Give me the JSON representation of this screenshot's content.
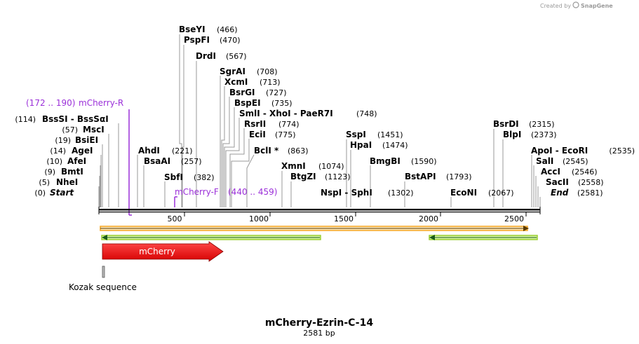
{
  "credit": "Created by",
  "brand": "SnapGene",
  "title": "mCherry-Ezrin-C-14",
  "subtitle": "2581 bp",
  "sites": [
    {
      "name": "BseYI",
      "pos": "(466)"
    },
    {
      "name": "PspFI",
      "pos": "(470)"
    },
    {
      "name": "DrdI",
      "pos": "(567)"
    },
    {
      "name": "SgrAI",
      "pos": "(708)"
    },
    {
      "name": "XcmI",
      "pos": "(713)"
    },
    {
      "name": "BsrGI",
      "pos": "(727)"
    },
    {
      "name": "BspEI",
      "pos": "(735)"
    },
    {
      "name": "SmlI - XhoI - PaeR7I",
      "pos": "(748)"
    },
    {
      "name": "RsrII",
      "pos": "(774)"
    },
    {
      "name": "EciI",
      "pos": "(775)"
    },
    {
      "name": "BclI *",
      "pos": "(863)"
    },
    {
      "name": "BssSI - BssSαI",
      "pos": "(114)"
    },
    {
      "name": "MscI",
      "pos": "(57)"
    },
    {
      "name": "BsiEI",
      "pos": "(19)"
    },
    {
      "name": "AgeI",
      "pos": "(14)"
    },
    {
      "name": "AfeI",
      "pos": "(10)"
    },
    {
      "name": "BmtI",
      "pos": "(9)"
    },
    {
      "name": "NheI",
      "pos": "(5)"
    },
    {
      "name": "Start",
      "pos": "(0)"
    },
    {
      "name": "AhdI",
      "pos": "(221)"
    },
    {
      "name": "BsaAI",
      "pos": "(257)"
    },
    {
      "name": "SbfI",
      "pos": "(382)"
    },
    {
      "name": "XmnI",
      "pos": "(1074)"
    },
    {
      "name": "BtgZI",
      "pos": "(1123)"
    },
    {
      "name": "SspI",
      "pos": "(1451)"
    },
    {
      "name": "HpaI",
      "pos": "(1474)"
    },
    {
      "name": "NspI - SphI",
      "pos": "(1302)"
    },
    {
      "name": "BmgBI",
      "pos": "(1590)"
    },
    {
      "name": "BstAPI",
      "pos": "(1793)"
    },
    {
      "name": "EcoNI",
      "pos": "(2067)"
    },
    {
      "name": "BsrDI",
      "pos": "(2315)"
    },
    {
      "name": "BlpI",
      "pos": "(2373)"
    },
    {
      "name": "ApoI - EcoRI",
      "pos": "(2535)"
    },
    {
      "name": "SalI",
      "pos": "(2545)"
    },
    {
      "name": "AccI",
      "pos": "(2546)"
    },
    {
      "name": "SacII",
      "pos": "(2558)"
    },
    {
      "name": "End",
      "pos": "(2581)"
    }
  ],
  "primers": [
    {
      "range": "(172 .. 190)",
      "name": "mCherry-R"
    },
    {
      "name": "mCherry-F",
      "range": "(440 .. 459)"
    }
  ],
  "ticks": [
    "500",
    "1000",
    "1500",
    "2000",
    "2500"
  ],
  "features": {
    "mcherry": "mCherry",
    "kozak": "Kozak sequence"
  },
  "colors": {
    "mcherry": "#ee1111",
    "primer": "#9b30d9",
    "orf_orange": "#f5a623",
    "orf_green": "#2e8b2e"
  }
}
